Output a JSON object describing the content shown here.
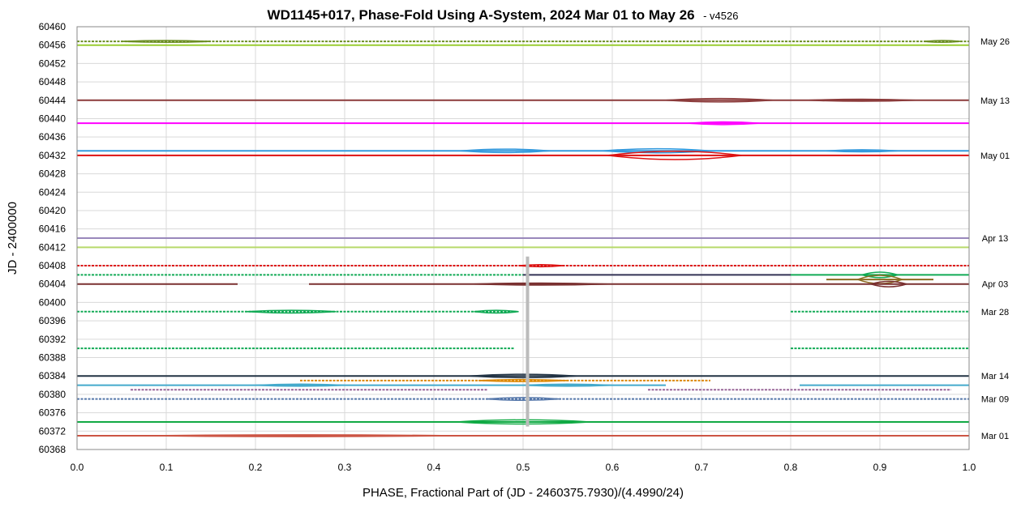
{
  "chart_data": {
    "type": "line",
    "title": "WD1145+017, Phase-Fold Using A-System, 2024 Mar 01 to May 26",
    "subtitle": "- v4526",
    "xlabel": "PHASE, Fractional Part of (JD - 2460375.7930)/(4.4990/24)",
    "ylabel": "JD - 2400000",
    "xlim": [
      0,
      1
    ],
    "ylim": [
      60368,
      60460
    ],
    "x_ticks": [
      0.0,
      0.1,
      0.2,
      0.3,
      0.4,
      0.5,
      0.6,
      0.7,
      0.8,
      0.9,
      1.0
    ],
    "x_tick_labels": [
      "0.0",
      "0.1",
      "0.2",
      "0.3",
      "0.4",
      "0.5",
      "0.6",
      "0.7",
      "0.8",
      "0.9",
      "1.0"
    ],
    "y_ticks": [
      60368,
      60372,
      60376,
      60380,
      60384,
      60388,
      60392,
      60396,
      60400,
      60404,
      60408,
      60412,
      60416,
      60420,
      60424,
      60428,
      60432,
      60436,
      60440,
      60444,
      60448,
      60452,
      60456,
      60460
    ],
    "y_tick_labels": [
      "60368",
      "60372",
      "60376",
      "60380",
      "60384",
      "60388",
      "60392",
      "60396",
      "60400",
      "60404",
      "60408",
      "60412",
      "60416",
      "60420",
      "60424",
      "60428",
      "60432",
      "60436",
      "60440",
      "60444",
      "60448",
      "60452",
      "60456",
      "60460"
    ],
    "grid": true,
    "date_annotations": [
      {
        "label": "May 26",
        "y": 60456.8
      },
      {
        "label": "May 13",
        "y": 60444.0
      },
      {
        "label": "May 01",
        "y": 60432.0
      },
      {
        "label": "Apr 13",
        "y": 60414.0
      },
      {
        "label": "Apr 03",
        "y": 60404.0
      },
      {
        "label": "Mar 28",
        "y": 60398.0
      },
      {
        "label": "Mar 14",
        "y": 60384.0
      },
      {
        "label": "Mar 09",
        "y": 60379.0
      },
      {
        "label": "Mar 01",
        "y": 60371.0
      }
    ],
    "series": [
      {
        "y": 60456.8,
        "color": "#6b8e23",
        "dashed": true,
        "segments": [
          [
            0.0,
            1.0
          ]
        ],
        "dips": [
          [
            0.1,
            0.1,
            0.25
          ],
          [
            0.97,
            0.04,
            0.2
          ]
        ]
      },
      {
        "y": 60456.0,
        "color": "#9acd32",
        "dashed": false,
        "segments": [
          [
            0.0,
            1.0
          ]
        ],
        "dips": []
      },
      {
        "y": 60444.0,
        "color": "#8b3a3a",
        "dashed": false,
        "segments": [
          [
            0.0,
            1.0
          ]
        ],
        "dips": [
          [
            0.72,
            0.12,
            0.5
          ],
          [
            0.88,
            0.12,
            0.3
          ]
        ]
      },
      {
        "y": 60439.0,
        "color": "#ff00ff",
        "dashed": false,
        "segments": [
          [
            0.0,
            1.0
          ]
        ],
        "dips": [
          [
            0.725,
            0.08,
            0.4
          ]
        ]
      },
      {
        "y": 60433.0,
        "color": "#3399dd",
        "dashed": false,
        "segments": [
          [
            0.0,
            1.0
          ]
        ],
        "dips": [
          [
            0.48,
            0.1,
            0.5
          ],
          [
            0.65,
            0.12,
            0.6
          ],
          [
            0.88,
            0.08,
            0.3
          ]
        ]
      },
      {
        "y": 60432.0,
        "color": "#dd1111",
        "dashed": false,
        "segments": [
          [
            0.0,
            1.0
          ]
        ],
        "dips": [
          [
            0.67,
            0.15,
            1.2
          ]
        ]
      },
      {
        "y": 60414.0,
        "color": "#9988bb",
        "dashed": false,
        "segments": [
          [
            0.0,
            1.0
          ]
        ],
        "dips": []
      },
      {
        "y": 60412.0,
        "color": "#b8d96a",
        "dashed": false,
        "segments": [
          [
            0.0,
            1.0
          ]
        ],
        "dips": []
      },
      {
        "y": 60408.0,
        "color": "#dd1111",
        "dashed": true,
        "segments": [
          [
            0.0,
            1.0
          ]
        ],
        "dips": [
          [
            0.52,
            0.05,
            0.3
          ]
        ]
      },
      {
        "y": 60406.0,
        "color": "#11aa55",
        "dashed": true,
        "segments": [
          [
            0.0,
            0.5
          ]
        ],
        "dips": []
      },
      {
        "y": 60406.0,
        "color": "#333355",
        "dashed": false,
        "segments": [
          [
            0.5,
            0.8
          ]
        ],
        "dips": []
      },
      {
        "y": 60406.0,
        "color": "#11aa55",
        "dashed": false,
        "segments": [
          [
            0.8,
            1.0
          ]
        ],
        "dips": [
          [
            0.9,
            0.04,
            0.8
          ]
        ]
      },
      {
        "y": 60405.0,
        "color": "#8b6b20",
        "dashed": false,
        "segments": [
          [
            0.84,
            0.96
          ]
        ],
        "dips": [
          [
            0.9,
            0.05,
            1.2
          ]
        ]
      },
      {
        "y": 60404.0,
        "color": "#7a3030",
        "dashed": false,
        "segments": [
          [
            0.0,
            0.18
          ],
          [
            0.26,
            1.0
          ]
        ],
        "dips": [
          [
            0.52,
            0.15,
            0.3
          ],
          [
            0.91,
            0.04,
            0.8
          ]
        ]
      },
      {
        "y": 60398.0,
        "color": "#11aa55",
        "dashed": true,
        "segments": [
          [
            0.0,
            0.49
          ],
          [
            0.8,
            1.0
          ]
        ],
        "dips": [
          [
            0.24,
            0.1,
            0.4
          ],
          [
            0.47,
            0.05,
            0.4
          ]
        ]
      },
      {
        "y": 60390.0,
        "color": "#11aa55",
        "dashed": true,
        "segments": [
          [
            0.0,
            0.49
          ],
          [
            0.8,
            1.0
          ]
        ],
        "dips": []
      },
      {
        "y": 60384.0,
        "color": "#223344",
        "dashed": false,
        "segments": [
          [
            0.0,
            1.0
          ]
        ],
        "dips": [
          [
            0.5,
            0.12,
            0.5
          ]
        ]
      },
      {
        "y": 60383.0,
        "color": "#dd8800",
        "dashed": true,
        "segments": [
          [
            0.25,
            0.71
          ]
        ],
        "dips": [
          [
            0.5,
            0.1,
            0.3
          ]
        ]
      },
      {
        "y": 60382.0,
        "color": "#44aacc",
        "dashed": false,
        "segments": [
          [
            0.0,
            0.66
          ],
          [
            0.81,
            1.0
          ]
        ],
        "dips": [
          [
            0.25,
            0.1,
            0.3
          ],
          [
            0.55,
            0.1,
            0.3
          ]
        ]
      },
      {
        "y": 60381.0,
        "color": "#996699",
        "dashed": true,
        "segments": [
          [
            0.06,
            0.46
          ],
          [
            0.64,
            0.98
          ]
        ],
        "dips": []
      },
      {
        "y": 60379.0,
        "color": "#5577aa",
        "dashed": true,
        "segments": [
          [
            0.0,
            1.0
          ]
        ],
        "dips": [
          [
            0.5,
            0.08,
            0.4
          ]
        ]
      },
      {
        "y": 60374.0,
        "color": "#11aa44",
        "dashed": false,
        "segments": [
          [
            0.0,
            1.0
          ]
        ],
        "dips": [
          [
            0.5,
            0.15,
            0.6
          ]
        ]
      },
      {
        "y": 60371.0,
        "color": "#cc5544",
        "dashed": false,
        "segments": [
          [
            0.0,
            1.0
          ]
        ],
        "dips": [
          [
            0.25,
            0.35,
            0.2
          ]
        ]
      }
    ],
    "reference_line": {
      "x": 0.505,
      "y_range": [
        60373,
        60410
      ],
      "color": "#bbbbbb"
    }
  }
}
